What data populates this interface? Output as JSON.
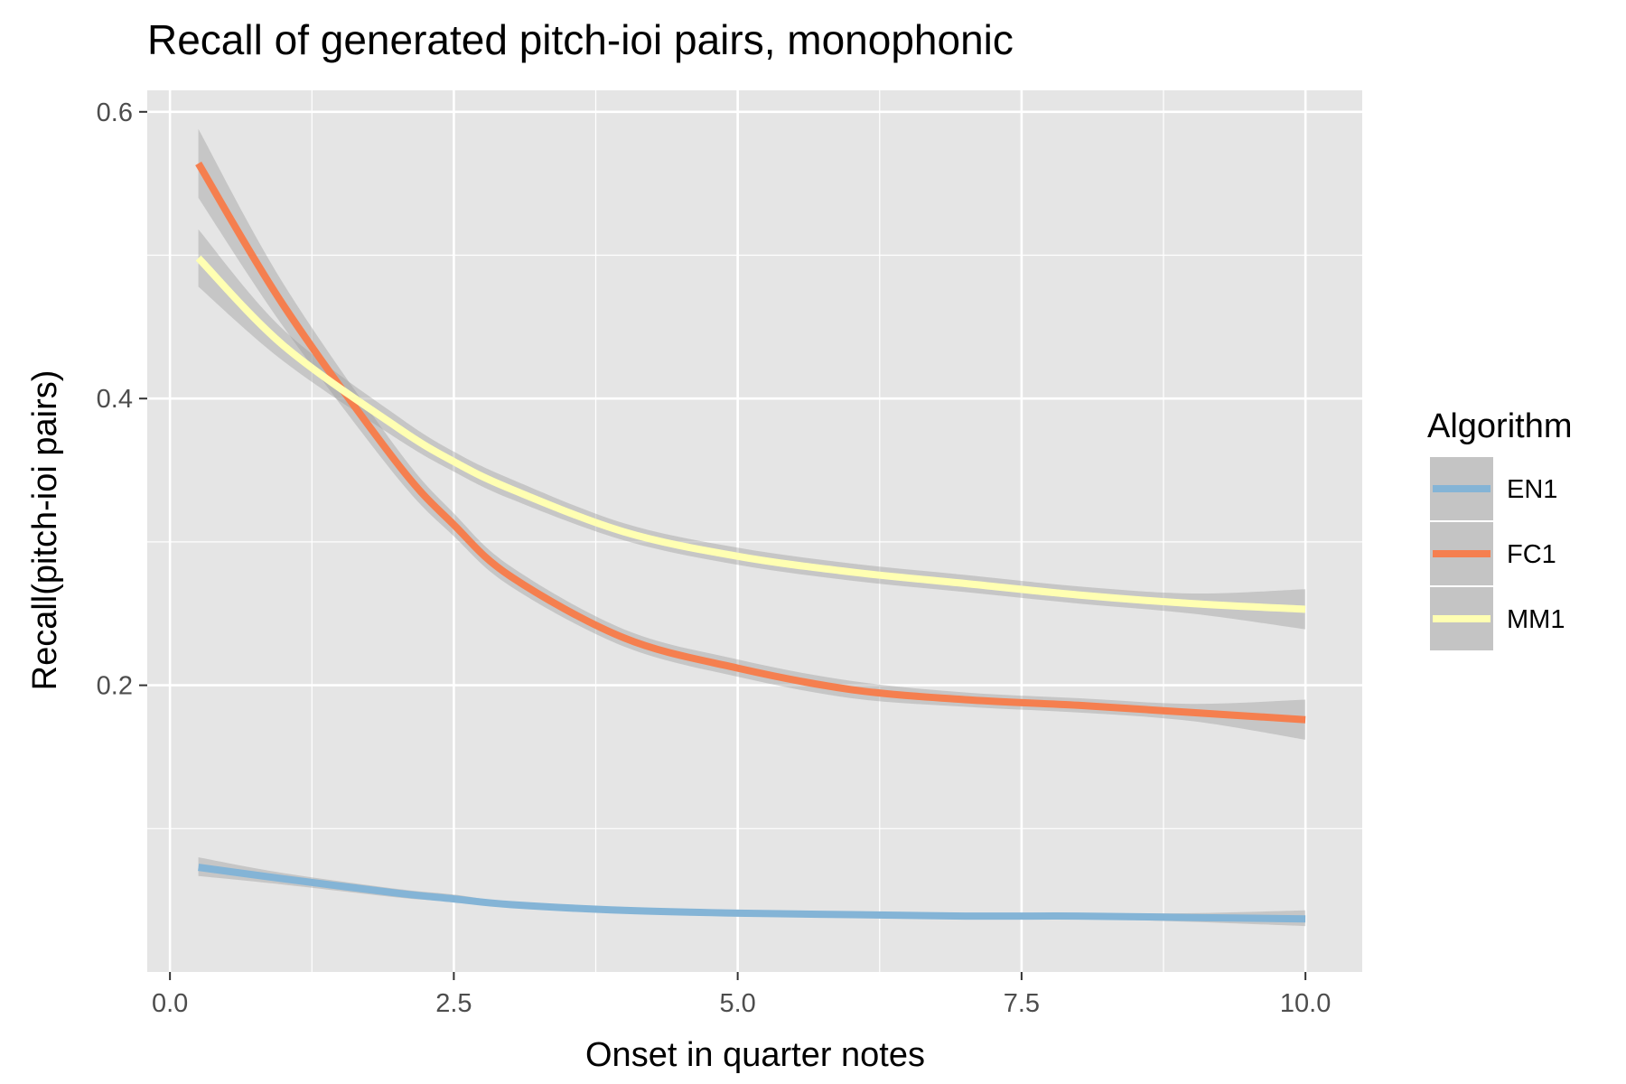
{
  "chart_data": {
    "type": "line",
    "title": "Recall of generated pitch-ioi pairs, monophonic",
    "xlabel": "Onset in quarter notes",
    "ylabel": "Recall(pitch-ioi pairs)",
    "xlim": [
      -0.2,
      10.5
    ],
    "ylim": [
      0.0,
      0.615
    ],
    "x_ticks": [
      0.0,
      2.5,
      5.0,
      7.5,
      10.0
    ],
    "x_tick_labels": [
      "0.0",
      "2.5",
      "5.0",
      "7.5",
      "10.0"
    ],
    "y_ticks": [
      0.2,
      0.4,
      0.6
    ],
    "y_tick_labels": [
      "0.2",
      "0.4",
      "0.6"
    ],
    "grid": true,
    "confidence_band": true,
    "legend": {
      "title": "Algorithm",
      "placement": "right"
    },
    "x": [
      0.25,
      1.0,
      2.0,
      2.5,
      3.0,
      4.0,
      5.0,
      6.0,
      7.0,
      8.0,
      9.0,
      10.0
    ],
    "series": [
      {
        "name": "EN1",
        "color": "#84b4d6",
        "values": [
          0.073,
          0.065,
          0.055,
          0.051,
          0.047,
          0.043,
          0.041,
          0.04,
          0.039,
          0.039,
          0.038,
          0.037
        ],
        "lower": [
          0.067,
          0.061,
          0.052,
          0.049,
          0.045,
          0.041,
          0.039,
          0.038,
          0.037,
          0.037,
          0.035,
          0.032
        ],
        "upper": [
          0.08,
          0.069,
          0.058,
          0.054,
          0.049,
          0.045,
          0.043,
          0.042,
          0.041,
          0.041,
          0.041,
          0.043
        ]
      },
      {
        "name": "FC1",
        "color": "#f57f4f",
        "values": [
          0.564,
          0.465,
          0.355,
          0.312,
          0.276,
          0.233,
          0.212,
          0.197,
          0.19,
          0.186,
          0.181,
          0.176
        ],
        "lower": [
          0.54,
          0.45,
          0.345,
          0.304,
          0.269,
          0.227,
          0.206,
          0.191,
          0.185,
          0.181,
          0.175,
          0.162
        ],
        "upper": [
          0.588,
          0.48,
          0.365,
          0.32,
          0.283,
          0.239,
          0.218,
          0.203,
          0.195,
          0.191,
          0.187,
          0.19
        ]
      },
      {
        "name": "MM1",
        "color": "#ffffb2",
        "values": [
          0.498,
          0.437,
          0.38,
          0.356,
          0.337,
          0.307,
          0.29,
          0.279,
          0.271,
          0.263,
          0.257,
          0.253
        ],
        "lower": [
          0.478,
          0.426,
          0.372,
          0.349,
          0.33,
          0.301,
          0.284,
          0.273,
          0.265,
          0.257,
          0.25,
          0.239
        ],
        "upper": [
          0.518,
          0.448,
          0.388,
          0.363,
          0.344,
          0.313,
          0.296,
          0.285,
          0.277,
          0.269,
          0.264,
          0.267
        ]
      }
    ]
  },
  "colors": {
    "panel_background": "#e5e5e5",
    "grid_major": "#ffffff",
    "band_fill": "#999999"
  }
}
